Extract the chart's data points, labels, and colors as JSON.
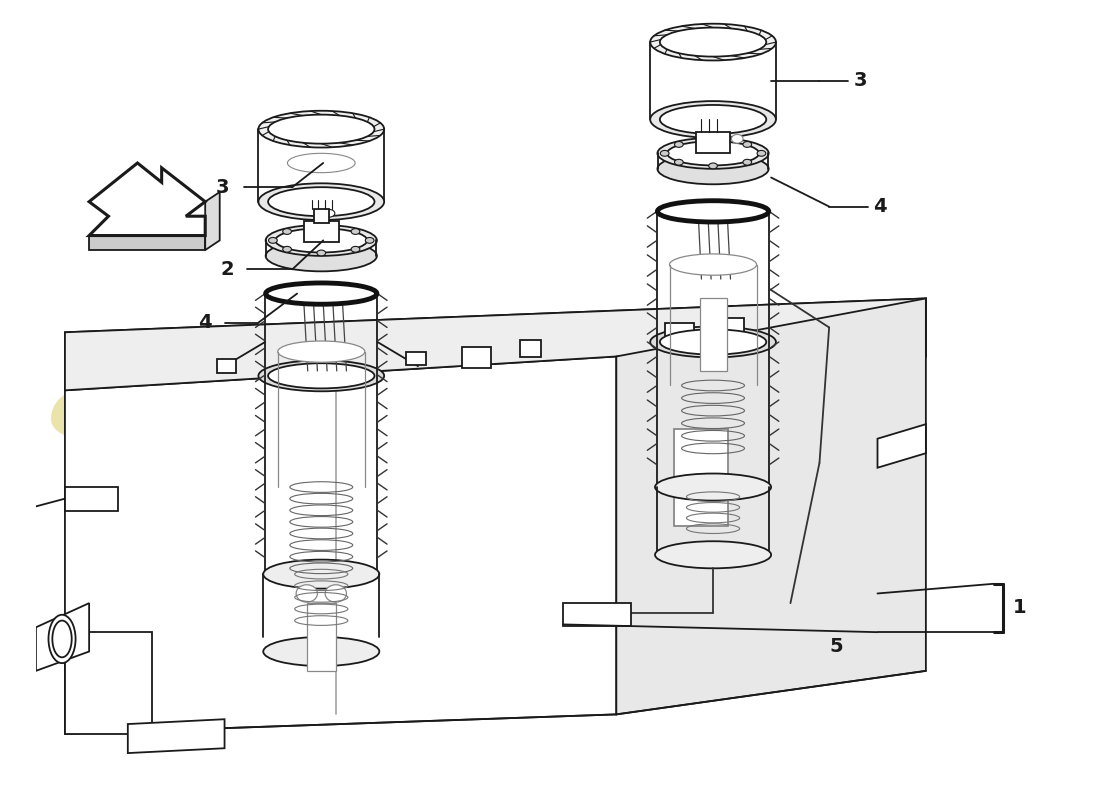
{
  "background_color": "#ffffff",
  "line_color": "#1a1a1a",
  "label_color": "#1a1a1a",
  "watermark_color": "#c8b820",
  "watermark_alpha": 0.38,
  "figsize": [
    11.0,
    8.0
  ],
  "dpi": 100,
  "lw": 1.3,
  "lw_thick": 2.2,
  "lw_spring": 1.0,
  "label_fontsize": 14,
  "label_fontweight": "bold"
}
